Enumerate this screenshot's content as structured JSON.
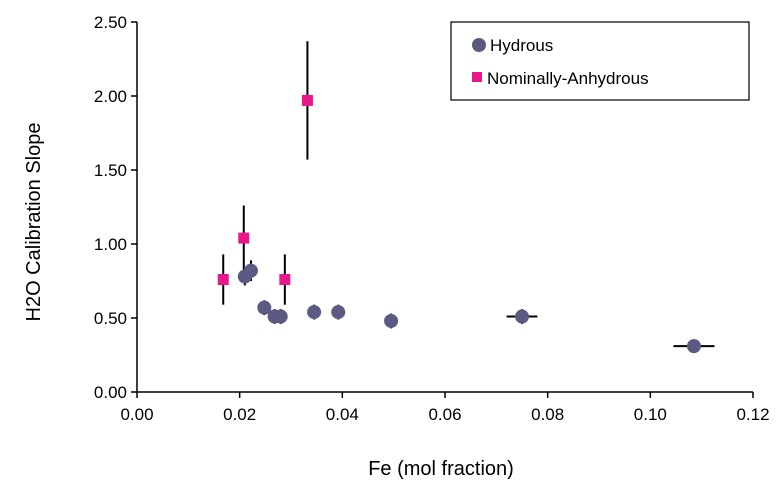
{
  "chart_data": {
    "type": "scatter",
    "title": "",
    "xlabel": "Fe (mol fraction)",
    "ylabel": "H2O Calibration Slope",
    "xlim": [
      0,
      0.12
    ],
    "ylim": [
      0,
      2.5
    ],
    "x_ticks": [
      "0.00",
      "0.02",
      "0.04",
      "0.06",
      "0.08",
      "0.10",
      "0.12"
    ],
    "y_ticks": [
      "0.00",
      "0.50",
      "1.00",
      "1.50",
      "2.00",
      "2.50"
    ],
    "grid": false,
    "legend_position": "top-right",
    "series": [
      {
        "name": "Hydrous",
        "marker": "circle",
        "color": "#5a5a82",
        "points": [
          {
            "x": 0.021,
            "y": 0.78,
            "yerr": 0.06,
            "xerr": 0.0
          },
          {
            "x": 0.0222,
            "y": 0.82,
            "yerr": 0.07,
            "xerr": 0.0
          },
          {
            "x": 0.0248,
            "y": 0.57,
            "yerr": 0.05,
            "xerr": 0.0
          },
          {
            "x": 0.0268,
            "y": 0.51,
            "yerr": 0.05,
            "xerr": 0.0
          },
          {
            "x": 0.028,
            "y": 0.51,
            "yerr": 0.05,
            "xerr": 0.0
          },
          {
            "x": 0.0345,
            "y": 0.54,
            "yerr": 0.05,
            "xerr": 0.0
          },
          {
            "x": 0.0392,
            "y": 0.54,
            "yerr": 0.05,
            "xerr": 0.0
          },
          {
            "x": 0.0495,
            "y": 0.48,
            "yerr": 0.05,
            "xerr": 0.0
          },
          {
            "x": 0.075,
            "y": 0.51,
            "yerr": 0.05,
            "xerr": 0.003
          },
          {
            "x": 0.1085,
            "y": 0.31,
            "yerr": 0.0,
            "xerr": 0.004
          }
        ]
      },
      {
        "name": "Nominally-Anhydrous",
        "marker": "square",
        "color": "#e8178a",
        "points": [
          {
            "x": 0.0168,
            "y": 0.76,
            "yerr": 0.17
          },
          {
            "x": 0.0208,
            "y": 1.04,
            "yerr": 0.22
          },
          {
            "x": 0.0288,
            "y": 0.76,
            "yerr": 0.17
          },
          {
            "x": 0.0332,
            "y": 1.97,
            "yerr": 0.4
          }
        ]
      }
    ]
  },
  "legend": {
    "items": [
      "Hydrous",
      "Nominally-Anhydrous"
    ]
  }
}
